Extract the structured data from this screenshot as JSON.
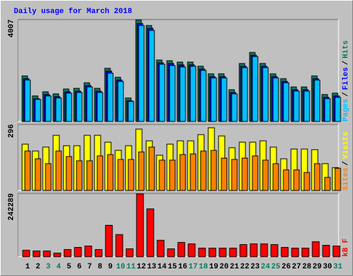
{
  "chart_data": [
    {
      "type": "bar",
      "title": "Daily usage for March 2018",
      "legend_separator": "/",
      "ylim": [
        0,
        4007
      ],
      "yticks": [
        4007
      ],
      "series": [
        {
          "name": "Hits",
          "color": "#00805c",
          "values": [
            1799,
            1009,
            1172,
            1090,
            1281,
            1308,
            1527,
            1308,
            2099,
            1745,
            927,
            4007,
            3789,
            2426,
            2399,
            2344,
            2344,
            2181,
            1881,
            1881,
            1254,
            2290,
            2726,
            2290,
            1881,
            1690,
            1363,
            1363,
            1799,
            1063,
            1118
          ]
        },
        {
          "name": "Files",
          "color": "#0000ff",
          "values": [
            1690,
            900,
            1063,
            981,
            1172,
            1199,
            1418,
            1199,
            1990,
            1636,
            818,
            3870,
            3680,
            2317,
            2290,
            2235,
            2235,
            2072,
            1772,
            1772,
            1145,
            2181,
            2617,
            2181,
            1772,
            1581,
            1254,
            1254,
            1690,
            954,
            1009
          ]
        },
        {
          "name": "Pages",
          "color": "#00c0ff",
          "values": [
            1636,
            872,
            1009,
            927,
            1118,
            1145,
            1363,
            1145,
            1908,
            1581,
            790,
            3789,
            3598,
            2262,
            2208,
            2153,
            2181,
            2017,
            1718,
            1718,
            1090,
            2126,
            2562,
            2126,
            1718,
            1527,
            1199,
            1199,
            1636,
            900,
            954
          ]
        }
      ]
    },
    {
      "type": "bar",
      "ylim": [
        0,
        296
      ],
      "yticks": [
        296
      ],
      "series": [
        {
          "name": "Visits",
          "color": "#ffff00",
          "values": [
            209,
            178,
            196,
            249,
            202,
            202,
            249,
            249,
            218,
            181,
            202,
            277,
            224,
            159,
            209,
            224,
            224,
            252,
            283,
            246,
            193,
            218,
            218,
            224,
            196,
            143,
            187,
            187,
            184,
            121,
            103
          ]
        },
        {
          "name": "Sites",
          "color": "#ff8000",
          "values": [
            178,
            143,
            121,
            178,
            153,
            134,
            134,
            156,
            162,
            140,
            140,
            174,
            196,
            137,
            137,
            162,
            165,
            178,
            181,
            146,
            140,
            146,
            156,
            137,
            121,
            93,
            93,
            81,
            121,
            59,
            100
          ]
        }
      ]
    },
    {
      "type": "bar",
      "ylim": [
        0,
        242289
      ],
      "yticks": [
        242289
      ],
      "series": [
        {
          "name": "kB F",
          "color": "#ff0000",
          "values": [
            24780,
            22027,
            22027,
            13766,
            27533,
            35792,
            41299,
            27533,
            121143,
            85350,
            30286,
            242289,
            184471,
            63324,
            30286,
            55066,
            49559,
            33039,
            33039,
            33039,
            33039,
            46806,
            49559,
            49559,
            46806,
            35792,
            33039,
            33039,
            57819,
            44052,
            41299
          ]
        }
      ],
      "categories": [
        "1",
        "2",
        "3",
        "4",
        "5",
        "6",
        "7",
        "8",
        "9",
        "10",
        "11",
        "12",
        "13",
        "14",
        "15",
        "16",
        "17",
        "18",
        "19",
        "20",
        "21",
        "22",
        "23",
        "24",
        "25",
        "26",
        "27",
        "28",
        "29",
        "30",
        "31"
      ],
      "category_colors": [
        "#000000",
        "#000000",
        "#00805c",
        "#00805c",
        "#000000",
        "#000000",
        "#000000",
        "#000000",
        "#000000",
        "#00805c",
        "#00805c",
        "#000000",
        "#000000",
        "#000000",
        "#000000",
        "#000000",
        "#00805c",
        "#00805c",
        "#000000",
        "#000000",
        "#000000",
        "#000000",
        "#000000",
        "#00805c",
        "#00805c",
        "#000000",
        "#000000",
        "#000000",
        "#000000",
        "#000000",
        "#00805c"
      ]
    }
  ]
}
